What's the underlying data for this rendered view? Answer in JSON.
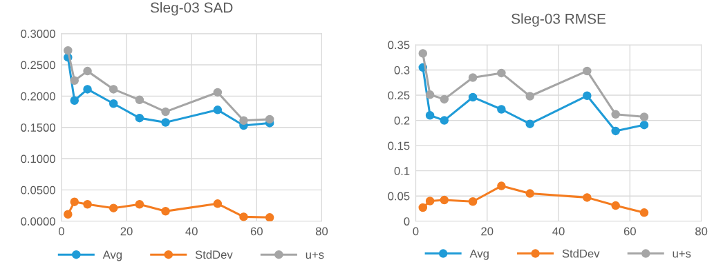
{
  "chart_data": [
    {
      "type": "line",
      "title": "Sleg-03 SAD",
      "x": [
        2,
        4,
        8,
        16,
        24,
        32,
        48,
        56,
        64
      ],
      "xlim": [
        0,
        80
      ],
      "xticks": [
        0,
        20,
        40,
        60,
        80
      ],
      "ylim": [
        0,
        0.3
      ],
      "yticks": [
        {
          "value": 0,
          "label": "0.0000"
        },
        {
          "value": 0.05,
          "label": "0.0500"
        },
        {
          "value": 0.1,
          "label": "0.1000"
        },
        {
          "value": 0.15,
          "label": "0.1500"
        },
        {
          "value": 0.2,
          "label": "0.2000"
        },
        {
          "value": 0.25,
          "label": "0.2500"
        },
        {
          "value": 0.3,
          "label": "0.3000"
        }
      ],
      "grid": true,
      "legend": "bottom",
      "marker": "circle",
      "line_style": "solid",
      "series": [
        {
          "name": "Avg",
          "color": "#1f9bd7",
          "values": [
            0.262,
            0.193,
            0.211,
            0.188,
            0.165,
            0.158,
            0.178,
            0.153,
            0.157
          ]
        },
        {
          "name": "StdDev",
          "color": "#f47c20",
          "values": [
            0.011,
            0.031,
            0.027,
            0.021,
            0.027,
            0.016,
            0.028,
            0.007,
            0.006
          ]
        },
        {
          "name": "u+s",
          "color": "#a5a5a5",
          "values": [
            0.273,
            0.225,
            0.24,
            0.211,
            0.194,
            0.175,
            0.206,
            0.161,
            0.163
          ]
        }
      ]
    },
    {
      "type": "line",
      "title": "Sleg-03 RMSE",
      "x": [
        2,
        4,
        8,
        16,
        24,
        32,
        48,
        56,
        64
      ],
      "xlim": [
        0,
        80
      ],
      "xticks": [
        0,
        20,
        40,
        60,
        80
      ],
      "ylim": [
        0,
        0.35
      ],
      "yticks": [
        0,
        0.05,
        0.1,
        0.15,
        0.2,
        0.25,
        0.3,
        0.35
      ],
      "grid": true,
      "legend": "bottom",
      "marker": "circle",
      "line_style": "solid",
      "series": [
        {
          "name": "Avg",
          "color": "#1f9bd7",
          "values": [
            0.305,
            0.21,
            0.2,
            0.246,
            0.222,
            0.193,
            0.249,
            0.179,
            0.191
          ]
        },
        {
          "name": "StdDev",
          "color": "#f47c20",
          "values": [
            0.027,
            0.04,
            0.042,
            0.039,
            0.07,
            0.055,
            0.047,
            0.031,
            0.017
          ]
        },
        {
          "name": "u+s",
          "color": "#a5a5a5",
          "values": [
            0.333,
            0.251,
            0.242,
            0.285,
            0.294,
            0.248,
            0.298,
            0.212,
            0.207
          ]
        }
      ]
    }
  ]
}
